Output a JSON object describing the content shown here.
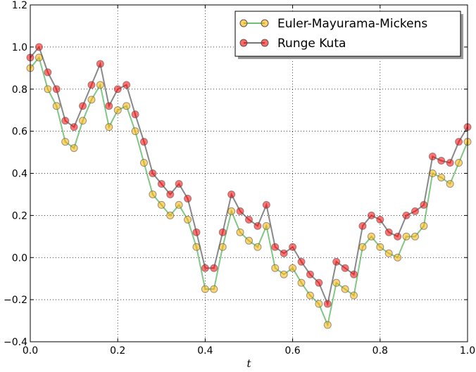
{
  "chart_data": {
    "type": "line",
    "title": "",
    "xlabel": "t",
    "ylabel": "",
    "xlim": [
      0.0,
      1.0
    ],
    "ylim": [
      -0.4,
      1.2
    ],
    "xticks": [
      0.0,
      0.2,
      0.4,
      0.6,
      0.8,
      1.0
    ],
    "xtick_labels": [
      "0.0",
      "0.2",
      "0.4",
      "0.6",
      "0.8",
      "1.0"
    ],
    "yticks": [
      -0.4,
      -0.2,
      0.0,
      0.2,
      0.4,
      0.6,
      0.8,
      1.0,
      1.2
    ],
    "ytick_labels": [
      "−0.4",
      "−0.2",
      "0.0",
      "0.2",
      "0.4",
      "0.6",
      "0.8",
      "1.0",
      "1.2"
    ],
    "grid": true,
    "legend_position": "top-right",
    "x": [
      0.0,
      0.02,
      0.04,
      0.06,
      0.08,
      0.1,
      0.12,
      0.14,
      0.16,
      0.18,
      0.2,
      0.22,
      0.24,
      0.26,
      0.28,
      0.3,
      0.32,
      0.34,
      0.36,
      0.38,
      0.4,
      0.42,
      0.44,
      0.46,
      0.48,
      0.5,
      0.52,
      0.54,
      0.56,
      0.58,
      0.6,
      0.62,
      0.64,
      0.66,
      0.68,
      0.7,
      0.72,
      0.74,
      0.76,
      0.78,
      0.8,
      0.82,
      0.84,
      0.86,
      0.88,
      0.9,
      0.92,
      0.94,
      0.96,
      0.98,
      1.0
    ],
    "series": [
      {
        "name": "Euler-Mayurama-Mickens",
        "line_color": "#4caf50",
        "marker_color": "#ffb000",
        "values": [
          0.9,
          0.95,
          0.8,
          0.72,
          0.55,
          0.52,
          0.65,
          0.75,
          0.82,
          0.62,
          0.7,
          0.72,
          0.6,
          0.45,
          0.3,
          0.25,
          0.2,
          0.25,
          0.18,
          0.05,
          -0.15,
          -0.15,
          0.05,
          0.22,
          0.12,
          0.08,
          0.05,
          0.15,
          -0.05,
          -0.08,
          -0.05,
          -0.12,
          -0.18,
          -0.22,
          -0.32,
          -0.12,
          -0.15,
          -0.18,
          0.05,
          0.1,
          0.05,
          0.02,
          0.0,
          0.1,
          0.1,
          0.15,
          0.4,
          0.38,
          0.35,
          0.45,
          0.55
        ]
      },
      {
        "name": "Runge Kuta",
        "line_color": "#555555",
        "marker_color": "#ff0000",
        "values": [
          0.95,
          1.0,
          0.88,
          0.8,
          0.65,
          0.62,
          0.72,
          0.82,
          0.92,
          0.72,
          0.8,
          0.82,
          0.68,
          0.55,
          0.4,
          0.35,
          0.3,
          0.35,
          0.28,
          0.12,
          -0.05,
          -0.05,
          0.12,
          0.3,
          0.22,
          0.18,
          0.15,
          0.25,
          0.05,
          0.02,
          0.05,
          -0.02,
          -0.08,
          -0.12,
          -0.22,
          -0.02,
          -0.05,
          -0.08,
          0.15,
          0.2,
          0.18,
          0.12,
          0.1,
          0.2,
          0.22,
          0.25,
          0.48,
          0.46,
          0.45,
          0.55,
          0.62
        ]
      }
    ]
  }
}
